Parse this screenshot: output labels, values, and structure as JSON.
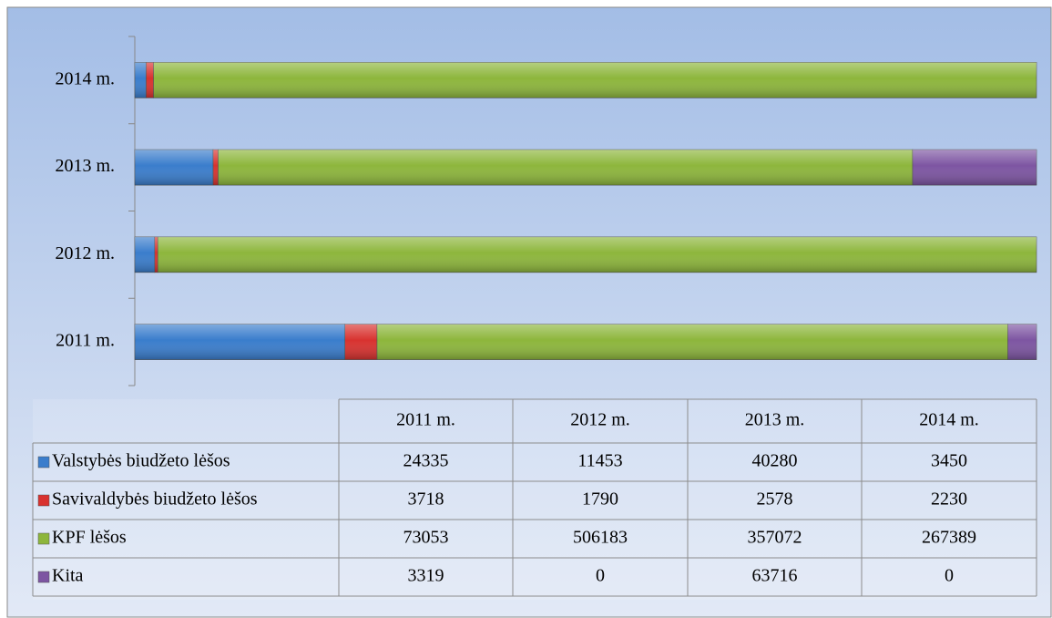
{
  "chart_data": {
    "type": "bar",
    "orientation": "horizontal",
    "stacked": "percent",
    "categories": [
      "2011 m.",
      "2012 m.",
      "2013 m.",
      "2014 m."
    ],
    "series": [
      {
        "name": "Valstybės biudžeto lėšos",
        "color": "#3a7dcc",
        "values": [
          24335,
          11453,
          40280,
          3450
        ]
      },
      {
        "name": "Savivaldybės biudžeto lėšos",
        "color": "#d8322f",
        "values": [
          3718,
          1790,
          2578,
          2230
        ]
      },
      {
        "name": "KPF lėšos",
        "color": "#8db63c",
        "values": [
          73053,
          506183,
          357072,
          267389
        ]
      },
      {
        "name": "Kita",
        "color": "#7d55a2",
        "values": [
          3319,
          0,
          63716,
          0
        ]
      }
    ],
    "data_table": true
  }
}
